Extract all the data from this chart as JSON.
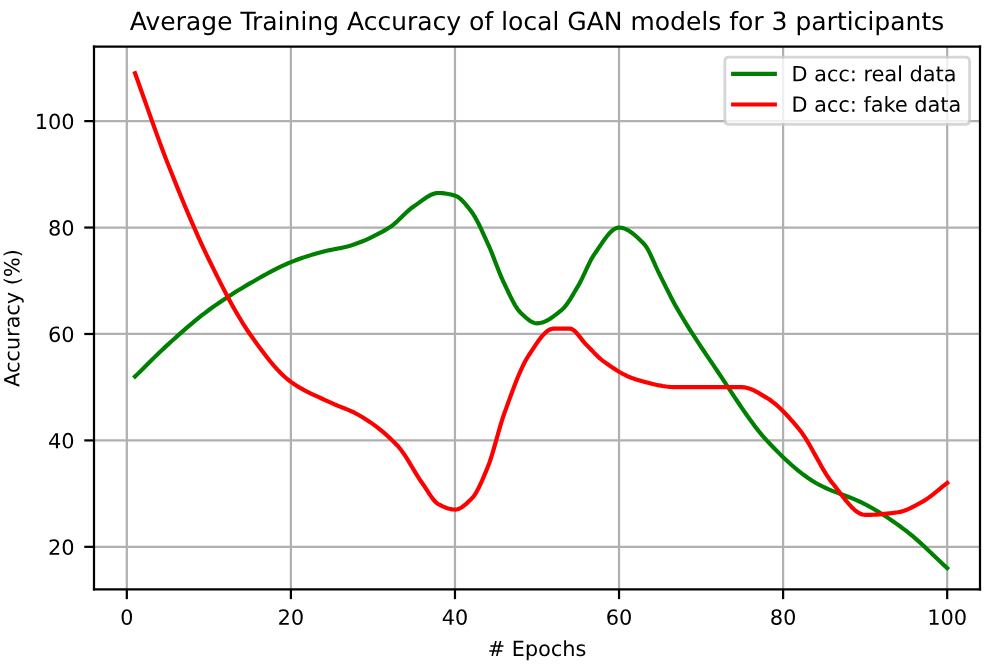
{
  "chart_data": {
    "type": "line",
    "title": "Average Training Accuracy of local GAN models for 3 participants",
    "xlabel": "# Epochs",
    "ylabel": "Accuracy (%)",
    "series": [
      {
        "name": "D acc: real data",
        "color": "#008000",
        "x": [
          1,
          5,
          10,
          15,
          20,
          24,
          27,
          32,
          35,
          38,
          40,
          42,
          44,
          46,
          48,
          50,
          53,
          55,
          57,
          60,
          63,
          65,
          67,
          72,
          78,
          84,
          90,
          95,
          100
        ],
        "values": [
          52,
          58,
          64.5,
          69.5,
          73.5,
          75.5,
          76.5,
          80,
          84,
          86.5,
          86,
          83,
          77,
          69.5,
          64,
          62,
          64.5,
          69,
          75,
          80,
          77,
          71,
          65,
          53,
          40,
          32,
          28,
          23,
          16
        ]
      },
      {
        "name": "D acc: fake data",
        "color": "#ff0000",
        "x": [
          1,
          5,
          10,
          15,
          20,
          25,
          28,
          33,
          36,
          38,
          40,
          42,
          44,
          46,
          49,
          52,
          54,
          56,
          58,
          62,
          67,
          75,
          78,
          82,
          86,
          90,
          94,
          97,
          100
        ],
        "values": [
          109,
          92,
          74,
          60,
          51,
          47,
          45,
          39,
          32,
          28,
          27,
          29,
          35,
          45,
          56,
          61,
          61,
          58,
          55,
          51.5,
          50,
          50,
          48,
          42,
          32,
          26,
          26.5,
          28.5,
          32
        ]
      }
    ],
    "xlim": [
      -4,
      104
    ],
    "ylim": [
      12,
      114
    ],
    "xticks": [
      0,
      20,
      40,
      60,
      80,
      100
    ],
    "yticks": [
      20,
      40,
      60,
      80,
      100
    ],
    "grid": true,
    "legend": "top right"
  }
}
